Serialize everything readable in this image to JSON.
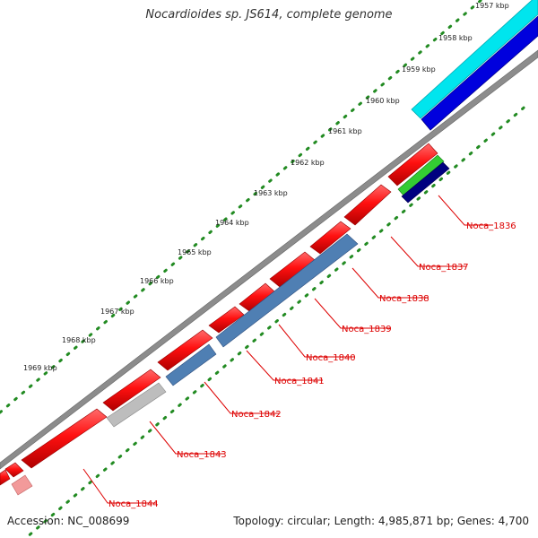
{
  "title": "Nocardioides sp. JS614, complete genome",
  "footer": {
    "accession": "Accession: NC_008699",
    "summary": "Topology: circular; Length: 4,985,871 bp; Genes: 4,700"
  },
  "ticks": [
    "1957 kbp",
    "1958 kbp",
    "1959 kbp",
    "1960 kbp",
    "1961 kbp",
    "1962 kbp",
    "1963 kbp",
    "1964 kbp",
    "1965 kbp",
    "1966 kbp",
    "1967 kbp",
    "1968 kbp",
    "1969 kbp"
  ],
  "gene_labels": [
    "Noca_1836",
    "Noca_1837",
    "Noca_1838",
    "Noca_1839",
    "Noca_1840",
    "Noca_1841",
    "Noca_1842",
    "Noca_1843",
    "Noca_1844"
  ],
  "colors": {
    "forward_cds": "#ff1a1a",
    "reverse_cds": "#4f7fb3",
    "pseudo": "#bdbdbd",
    "rna_cyan": "#00e5ee",
    "rna_blue": "#0000dd",
    "backbone": "#888888",
    "tick_dots": "#228b22",
    "label_red": "#dd0000",
    "green_feature": "#33cc33",
    "navy_feature": "#000080"
  }
}
